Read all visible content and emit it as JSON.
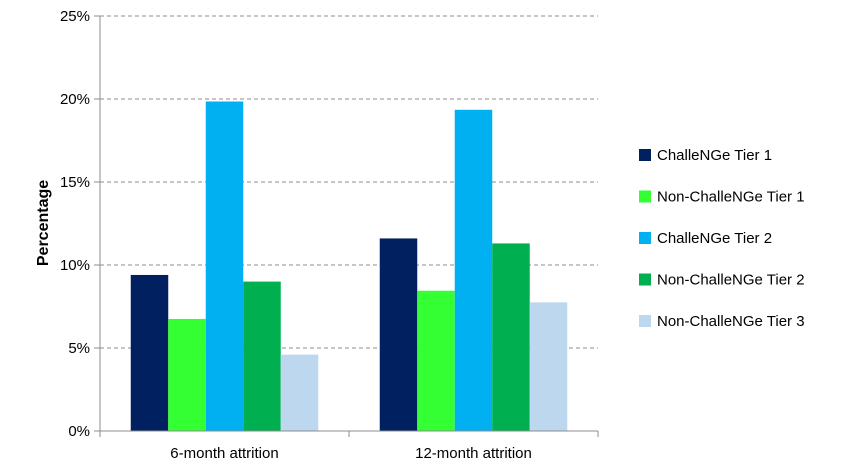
{
  "chart_data": {
    "type": "bar",
    "title": "",
    "xlabel": "",
    "ylabel": "Percentage",
    "ylim": [
      0,
      25
    ],
    "yticks": [
      0,
      5,
      10,
      15,
      20,
      25
    ],
    "ytick_labels": [
      "0%",
      "5%",
      "10%",
      "15%",
      "20%",
      "25%"
    ],
    "grid": true,
    "legend_position": "right",
    "categories": [
      "6-month attrition",
      "12-month attrition"
    ],
    "series": [
      {
        "name": "ChalleNGe Tier 1",
        "color": "#002060",
        "values": [
          9.4,
          11.6
        ]
      },
      {
        "name": "Non-ChalleNGe Tier 1",
        "color": "#33FF33",
        "values": [
          6.75,
          8.45
        ]
      },
      {
        "name": "ChalleNGe Tier 2",
        "color": "#00B0F0",
        "values": [
          19.85,
          19.35
        ]
      },
      {
        "name": "Non-ChalleNGe Tier 2",
        "color": "#00B050",
        "values": [
          9.0,
          11.3
        ]
      },
      {
        "name": "Non-ChalleNGe Tier 3",
        "color": "#BDD7EE",
        "values": [
          4.6,
          7.75
        ]
      }
    ]
  }
}
